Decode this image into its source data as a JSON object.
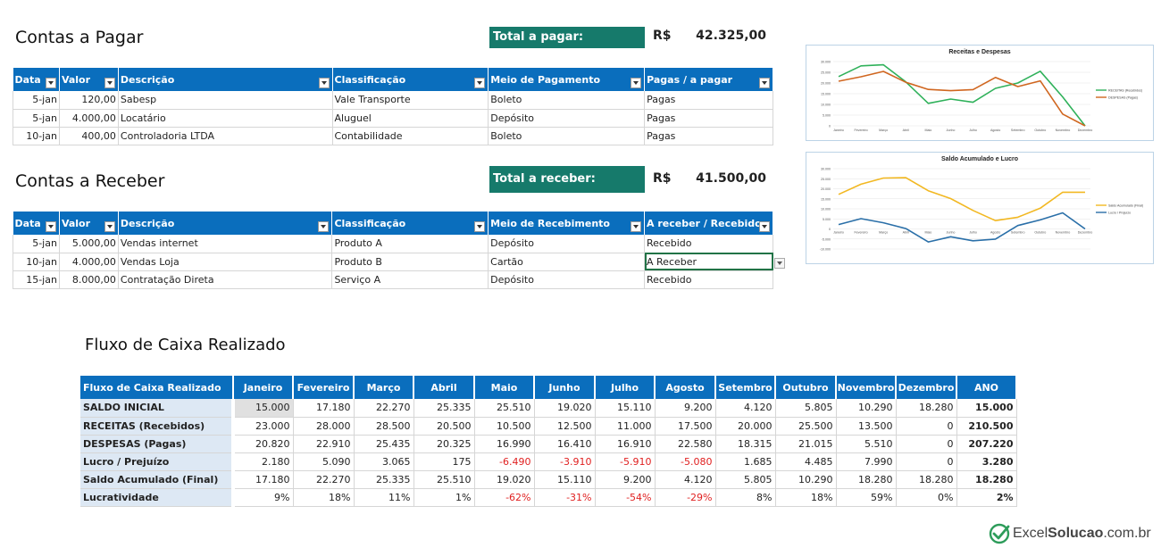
{
  "pagar": {
    "title": "Contas a Pagar",
    "total_label": "Total a pagar:",
    "currency": "R$",
    "total_value": "42.325,00",
    "headers": [
      "Data",
      "Valor",
      "Descrição",
      "Classificação",
      "Meio de Pagamento",
      "Pagas / a pagar"
    ],
    "rows": [
      [
        "5-jan",
        "120,00",
        "Sabesp",
        "Vale Transporte",
        "Boleto",
        "Pagas"
      ],
      [
        "5-jan",
        "4.000,00",
        "Locatário",
        "Aluguel",
        "Depósito",
        "Pagas"
      ],
      [
        "10-jan",
        "400,00",
        "Controladoria LTDA",
        "Contabilidade",
        "Boleto",
        "Pagas"
      ]
    ]
  },
  "receber": {
    "title": "Contas a Receber",
    "total_label": "Total a receber:",
    "currency": "R$",
    "total_value": "41.500,00",
    "headers": [
      "Data",
      "Valor",
      "Descrição",
      "Classificação",
      "Meio de Recebimento",
      "A receber / Recebido"
    ],
    "rows": [
      [
        "5-jan",
        "5.000,00",
        "Vendas internet",
        "Produto A",
        "Depósito",
        "Recebido"
      ],
      [
        "10-jan",
        "4.000,00",
        "Vendas Loja",
        "Produto B",
        "Cartão",
        "A Receber"
      ],
      [
        "15-jan",
        "8.000,00",
        "Contratação Direta",
        "Serviço A",
        "Depósito",
        "Recebido"
      ]
    ]
  },
  "fluxo": {
    "title": "Fluxo de Caixa Realizado",
    "corner": "Fluxo de Caixa Realizado",
    "months": [
      "Janeiro",
      "Fevereiro",
      "Março",
      "Abril",
      "Maio",
      "Junho",
      "Julho",
      "Agosto",
      "Setembro",
      "Outubro",
      "Novembro",
      "Dezembro",
      "ANO"
    ],
    "rows": [
      {
        "label": "SALDO INICIAL",
        "cells": [
          "15.000",
          "17.180",
          "22.270",
          "25.335",
          "25.510",
          "19.020",
          "15.110",
          "9.200",
          "4.120",
          "5.805",
          "10.290",
          "18.280",
          "15.000"
        ]
      },
      {
        "label": "RECEITAS (Recebidos)",
        "cells": [
          "23.000",
          "28.000",
          "28.500",
          "20.500",
          "10.500",
          "12.500",
          "11.000",
          "17.500",
          "20.000",
          "25.500",
          "13.500",
          "0",
          "210.500"
        ]
      },
      {
        "label": "DESPESAS (Pagas)",
        "cells": [
          "20.820",
          "22.910",
          "25.435",
          "20.325",
          "16.990",
          "16.410",
          "16.910",
          "22.580",
          "18.315",
          "21.015",
          "5.510",
          "0",
          "207.220"
        ]
      },
      {
        "label": "Lucro / Prejuízo",
        "cells": [
          "2.180",
          "5.090",
          "3.065",
          "175",
          "-6.490",
          "-3.910",
          "-5.910",
          "-5.080",
          "1.685",
          "4.485",
          "7.990",
          "0",
          "3.280"
        ]
      },
      {
        "label": "Saldo Acumulado (Final)",
        "cells": [
          "17.180",
          "22.270",
          "25.335",
          "25.510",
          "19.020",
          "15.110",
          "9.200",
          "4.120",
          "5.805",
          "10.290",
          "18.280",
          "18.280",
          "18.280"
        ]
      },
      {
        "label": "Lucratividade",
        "cells": [
          "9%",
          "18%",
          "11%",
          "1%",
          "-62%",
          "-31%",
          "-54%",
          "-29%",
          "8%",
          "18%",
          "59%",
          "0%",
          "2%"
        ]
      }
    ]
  },
  "chart_data": [
    {
      "type": "line",
      "title": "Receitas e Despesas",
      "categories": [
        "Janeiro",
        "Fevereiro",
        "Março",
        "Abril",
        "Maio",
        "Junho",
        "Julho",
        "Agosto",
        "Setembro",
        "Outubro",
        "Novembro",
        "Dezembro"
      ],
      "ylim": [
        0,
        30000
      ],
      "yticks": [
        "30.000",
        "25.000",
        "20.000",
        "15.000",
        "10.000",
        "5.000",
        "0"
      ],
      "legend_position": "right",
      "series": [
        {
          "name": "RECEITAS (Recebidos)",
          "color": "#2fb15a",
          "values": [
            23000,
            28000,
            28500,
            20500,
            10500,
            12500,
            11000,
            17500,
            20000,
            25500,
            13500,
            0
          ]
        },
        {
          "name": "DESPESAS (Pagas)",
          "color": "#d0661f",
          "values": [
            20820,
            22910,
            25435,
            20325,
            16990,
            16410,
            16910,
            22580,
            18315,
            21015,
            5510,
            0
          ]
        }
      ]
    },
    {
      "type": "line",
      "title": "Saldo Acumulado e Lucro",
      "categories": [
        "Janeiro",
        "Fevereiro",
        "Março",
        "Abril",
        "Maio",
        "Junho",
        "Julho",
        "Agosto",
        "Setembro",
        "Outubro",
        "Novembro",
        "Dezembro"
      ],
      "ylim": [
        -10000,
        30000
      ],
      "yticks": [
        "30.000",
        "25.000",
        "20.000",
        "15.000",
        "10.000",
        "5.000",
        "0",
        "-5.000",
        "-10.000"
      ],
      "legend_position": "right",
      "series": [
        {
          "name": "Saldo Acumulado (Final)",
          "color": "#f2b822",
          "values": [
            17180,
            22270,
            25335,
            25510,
            19020,
            15110,
            9200,
            4120,
            5805,
            10290,
            18280,
            18280
          ]
        },
        {
          "name": "Lucro / Prejuízo",
          "color": "#2a6fa8",
          "values": [
            2180,
            5090,
            3065,
            175,
            -6490,
            -3910,
            -5910,
            -5080,
            1685,
            4485,
            7990,
            0
          ]
        }
      ]
    }
  ],
  "logo": {
    "part1": "Excel",
    "part2": "Solucao",
    "part3": ".com.br",
    "icon": "check-shield-icon",
    "color": "#2d9c5a"
  }
}
